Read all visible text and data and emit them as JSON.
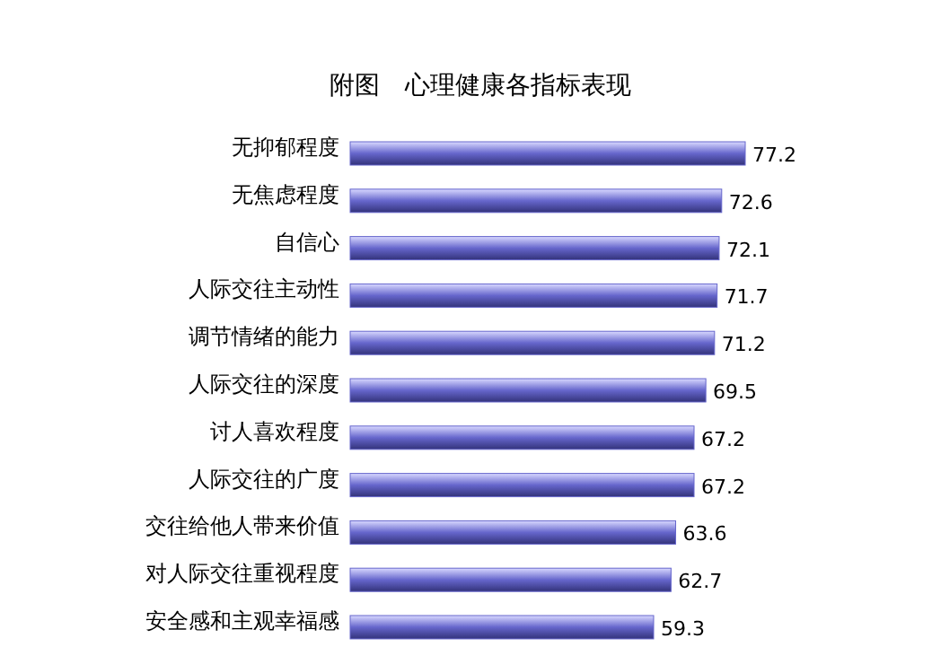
{
  "chart_data": {
    "type": "bar",
    "orientation": "horizontal",
    "title": "附图　心理健康各指标表现",
    "categories": [
      "无抑郁程度",
      "无焦虑程度",
      "自信心",
      "人际交往主动性",
      "调节情绪的能力",
      "人际交往的深度",
      "讨人喜欢程度",
      "人际交往的广度",
      "交往给他人带来价值",
      "对人际交往重视程度",
      "安全感和主观幸福感"
    ],
    "values": [
      77.2,
      72.6,
      72.1,
      71.7,
      71.2,
      69.5,
      67.2,
      67.2,
      63.6,
      62.7,
      59.3
    ],
    "color": "#6666cc",
    "data_labels": true
  }
}
